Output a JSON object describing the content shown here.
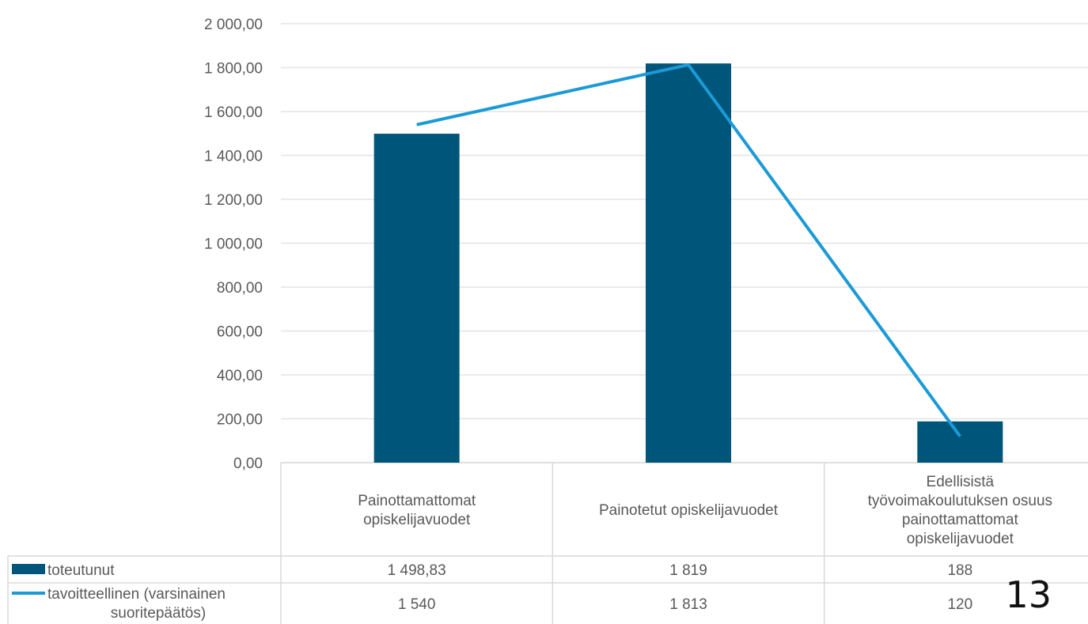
{
  "page_number": "13",
  "chart_data": {
    "type": "bar",
    "ylim": [
      0,
      2000
    ],
    "yticks": [
      0,
      200,
      400,
      600,
      800,
      1000,
      1200,
      1400,
      1600,
      1800,
      2000
    ],
    "ytick_labels": [
      "0,00",
      "200,00",
      "400,00",
      "600,00",
      "800,00",
      "1 000,00",
      "1 200,00",
      "1 400,00",
      "1 600,00",
      "1 800,00",
      "2 000,00"
    ],
    "grid": true,
    "categories": [
      [
        "Painottamattomat",
        "opiskelijavuodet"
      ],
      [
        "Painotetut opiskelijavuodet"
      ],
      [
        "Edellisistä",
        "työvoimakoulutuksen osuus",
        "painottamattomat",
        "opiskelijavuodet"
      ]
    ],
    "series": [
      {
        "name": "toteutunut",
        "type": "bar",
        "color": "#00557a",
        "values": [
          1498.83,
          1819,
          188
        ],
        "value_labels": [
          "1 498,83",
          "1 819",
          "188"
        ]
      },
      {
        "name": "tavoitteellinen (varsinainen suoritepäätös)",
        "name_lines": [
          "tavoitteellinen  (varsinainen",
          "suoritepäätös)"
        ],
        "type": "line",
        "color": "#1b9ad6",
        "values": [
          1540,
          1813,
          120
        ],
        "value_labels": [
          "1 540",
          "1 813",
          "120"
        ]
      }
    ],
    "legend": "data-table-left"
  }
}
